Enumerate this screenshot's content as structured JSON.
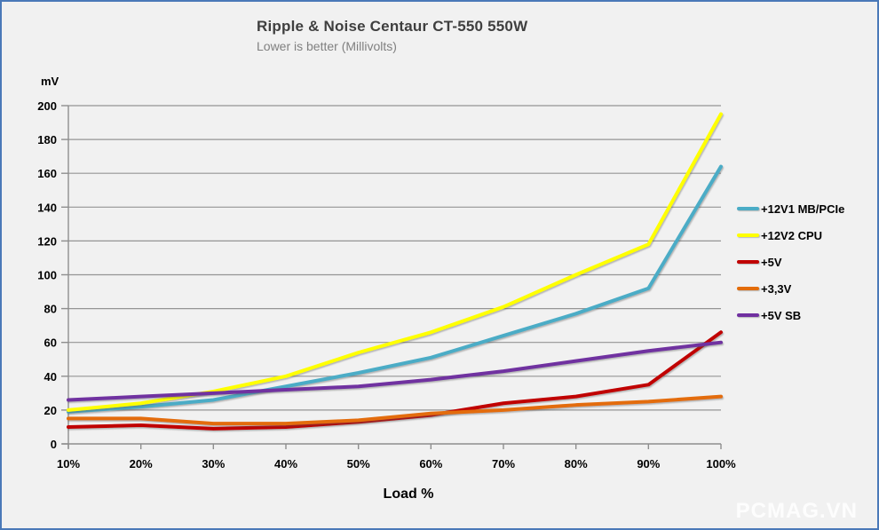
{
  "watermark": "PCMAG.VN",
  "colors": {
    "frame_border": "#4a79b8",
    "background": "#f1f1f1",
    "gridline": "#959595",
    "axis": "#8e8e8e",
    "title": "#3f3f3f",
    "subtitle": "#808080",
    "watermark": "#ffffff"
  },
  "chart_data": {
    "type": "line",
    "title": "Ripple & Noise Centaur CT-550 550W",
    "subtitle": "Lower is better (Millivolts)",
    "ylabel": "mV",
    "xlabel": "Load %",
    "categories": [
      "10%",
      "20%",
      "30%",
      "40%",
      "50%",
      "60%",
      "70%",
      "80%",
      "90%",
      "100%"
    ],
    "y_ticks": [
      0,
      20,
      40,
      60,
      80,
      100,
      120,
      140,
      160,
      180,
      200
    ],
    "ylim": [
      0,
      200
    ],
    "grid": "horizontal-only",
    "legend_position": "right",
    "series": [
      {
        "name": "+12V1 MB/PCIe",
        "color": "#4BACC6",
        "values": [
          19,
          22,
          26,
          34,
          42,
          51,
          64,
          77,
          92,
          164
        ]
      },
      {
        "name": "+12V2 CPU",
        "color": "#FFFF00",
        "values": [
          20,
          24,
          31,
          40,
          54,
          66,
          81,
          100,
          118,
          195
        ]
      },
      {
        "name": "+5V",
        "color": "#C00000",
        "values": [
          10,
          11,
          9,
          10,
          13,
          17,
          24,
          28,
          35,
          66
        ]
      },
      {
        "name": "+3,3V",
        "color": "#E36C0A",
        "values": [
          15,
          15,
          12,
          12,
          14,
          18,
          20,
          23,
          25,
          28
        ]
      },
      {
        "name": "+5V SB",
        "color": "#7030A0",
        "values": [
          26,
          28,
          30,
          32,
          34,
          38,
          43,
          49,
          55,
          60
        ]
      }
    ]
  }
}
